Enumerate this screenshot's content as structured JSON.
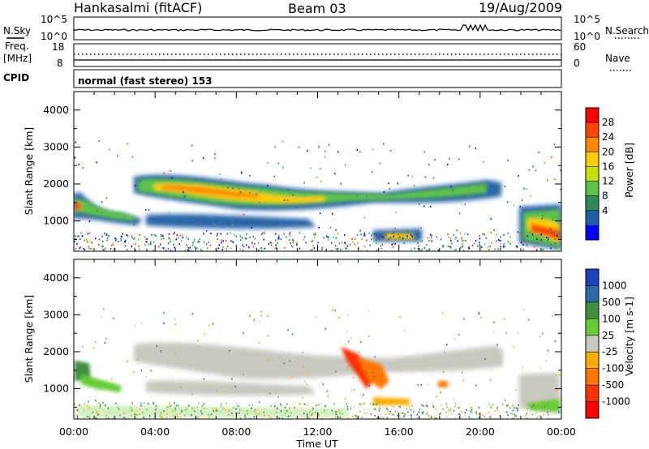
{
  "header": {
    "station": "Hankasalmi (fitACF)",
    "beam": "Beam 03",
    "date": "19/Aug/2009"
  },
  "noise_panel": {
    "left_label": "N.Sky",
    "right_label": "N.Search",
    "left_ticks": [
      "10^5",
      "10^0"
    ],
    "right_ticks": [
      "10^5",
      "10^0"
    ]
  },
  "freq_panel": {
    "label_line1": "Freq.",
    "label_line2": "[MHz]",
    "left_ticks": [
      "18",
      "8"
    ],
    "right_ticks": [
      "60",
      "0"
    ],
    "right_label": "Nave"
  },
  "cpid": {
    "label": "CPID",
    "text": "normal (fast stereo) 153"
  },
  "chart_data": [
    {
      "type": "heatmap",
      "panel": "power",
      "ylabel": "Slant Range [km]",
      "ylim": [
        180,
        4500
      ],
      "y_ticks": [
        1000,
        2000,
        3000,
        4000
      ],
      "x_ticks": [
        "00:00",
        "04:00",
        "08:00",
        "12:00",
        "16:00",
        "20:00",
        "00:00"
      ],
      "colorbar": {
        "label": "Power [dB]",
        "ticks": [
          "28",
          "24",
          "20",
          "16",
          "12",
          "8",
          "4"
        ],
        "colors": [
          "#ff0000",
          "#ff4400",
          "#ff8800",
          "#ffcc00",
          "#c8e000",
          "#5cc24a",
          "#2e8b57",
          "#1f5fa8",
          "#0000ff"
        ]
      }
    },
    {
      "type": "heatmap",
      "panel": "velocity",
      "ylabel": "Slant Range [km]",
      "xlabel": "Time UT",
      "ylim": [
        180,
        4500
      ],
      "y_ticks": [
        1000,
        2000,
        3000,
        4000
      ],
      "x_ticks": [
        "00:00",
        "04:00",
        "08:00",
        "12:00",
        "16:00",
        "20:00",
        "00:00"
      ],
      "colorbar": {
        "label": "Velocity [m s-1]",
        "ticks": [
          "1000",
          "500",
          "100",
          "25",
          "-25",
          "-100",
          "-500",
          "-1000"
        ],
        "colors": [
          "#2040c0",
          "#2a6aa8",
          "#3f8f3f",
          "#66cc33",
          "#c8c8c0",
          "#ffaa00",
          "#ff7700",
          "#ff3300",
          "#ff0000"
        ]
      }
    }
  ]
}
